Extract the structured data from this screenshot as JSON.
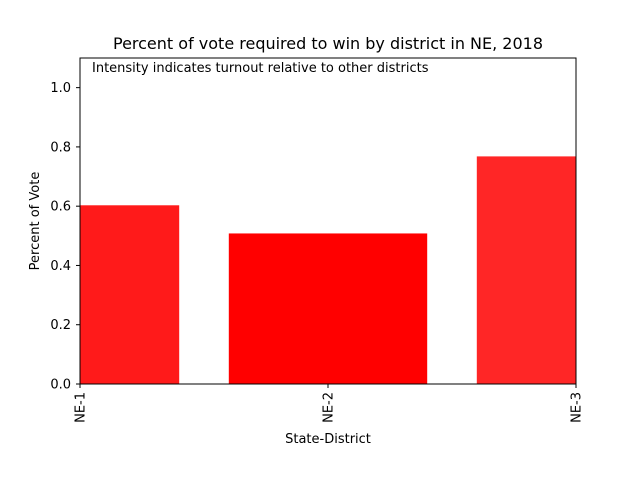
{
  "chart_data": {
    "type": "bar",
    "title": "Percent of vote required to win by district in NE, 2018",
    "annotation": "Intensity indicates turnout relative to other districts",
    "xlabel": "State-District",
    "ylabel": "Percent of Vote",
    "categories": [
      "NE-1",
      "NE-2",
      "NE-3"
    ],
    "values": [
      0.603,
      0.508,
      0.768
    ],
    "bar_colors": [
      "#ff1a1a",
      "#ff0000",
      "#ff2626"
    ],
    "x_positions": [
      0,
      0.5,
      1
    ],
    "bar_width": 0.4,
    "xlim": [
      0,
      1
    ],
    "ylim": [
      0,
      1.1
    ],
    "yticks": [
      0.0,
      0.2,
      0.4,
      0.6,
      0.8,
      1.0
    ],
    "ytick_labels": [
      "0.0",
      "0.2",
      "0.4",
      "0.6",
      "0.8",
      "1.0"
    ],
    "grid": false,
    "legend": "none"
  }
}
